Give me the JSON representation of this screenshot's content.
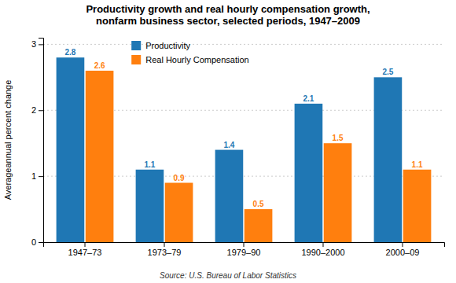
{
  "chart_data": {
    "type": "bar",
    "title": "Productivity growth and real hourly compensation growth,\nnonfarm business sector, selected periods, 1947–2009",
    "categories": [
      "1947–73",
      "1973–79",
      "1979–90",
      "1990–2000",
      "2000–09"
    ],
    "series": [
      {
        "name": "Productivity",
        "values": [
          2.8,
          1.1,
          1.4,
          2.1,
          2.5
        ]
      },
      {
        "name": "Real Hourly Compensation",
        "values": [
          2.6,
          0.9,
          0.5,
          1.5,
          1.1
        ]
      }
    ],
    "ylabel": "Averageannual percent change",
    "annotations": [
      "Source: U.S. Bureau of Labor Statistics"
    ],
    "ylim": [
      0,
      3.1
    ],
    "yticks": [
      0,
      1,
      2,
      3
    ],
    "grid": true,
    "legend": "upper left",
    "data_labels": true
  }
}
